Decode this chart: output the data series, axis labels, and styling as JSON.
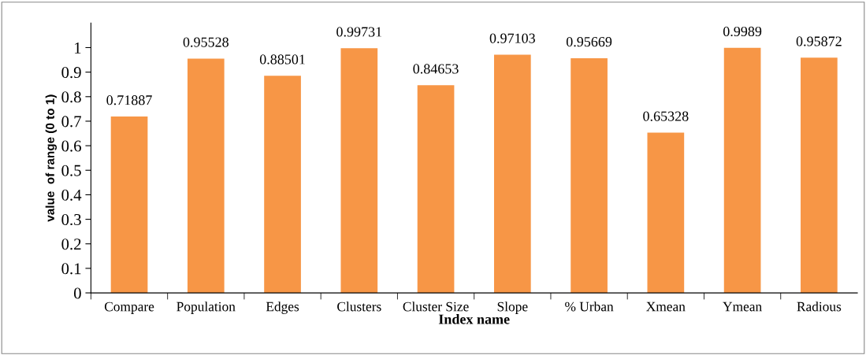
{
  "chart_data": {
    "type": "bar",
    "xlabel": "Index name",
    "ylabel": "value  of range (0 to 1)",
    "categories": [
      "Compare",
      "Population",
      "Edges",
      "Clusters",
      "Cluster Size",
      "Slope",
      "% Urban",
      "Xmean",
      "Ymean",
      "Radious"
    ],
    "values": [
      0.71887,
      0.95528,
      0.88501,
      0.99731,
      0.84653,
      0.97103,
      0.95669,
      0.65328,
      0.9989,
      0.95872
    ],
    "color": "#f79646",
    "data_labels": true,
    "ylim": [
      0,
      1.1
    ],
    "yticks": [
      0,
      0.1,
      0.2,
      0.3,
      0.4,
      0.5,
      0.6,
      0.7,
      0.8,
      0.9,
      1
    ],
    "grid": false,
    "legend": false
  }
}
